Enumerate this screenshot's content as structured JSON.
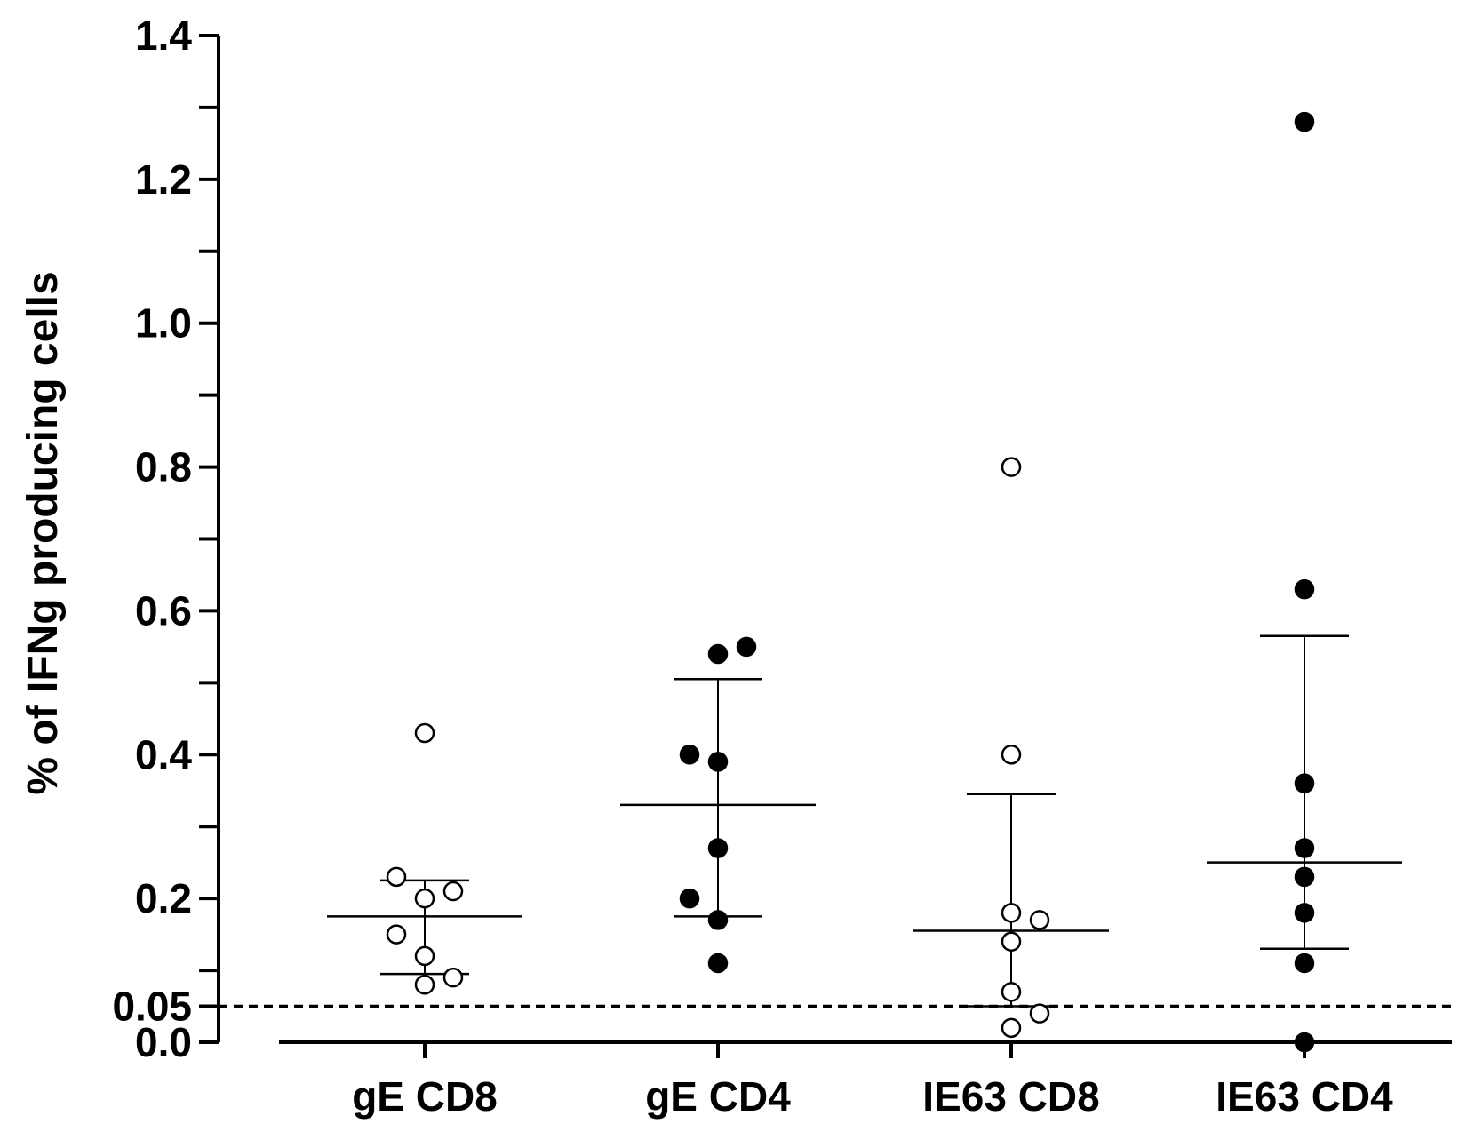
{
  "chart_data": {
    "type": "scatter",
    "title": "",
    "xlabel": "",
    "ylabel": "% of IFNg producing cells",
    "ylim": [
      0,
      1.4
    ],
    "yticks": [
      {
        "value": 0.0,
        "label": "0.0"
      },
      {
        "value": 0.05,
        "label": "0.05"
      },
      {
        "value": 0.2,
        "label": "0.2"
      },
      {
        "value": 0.4,
        "label": "0.4"
      },
      {
        "value": 0.6,
        "label": "0.6"
      },
      {
        "value": 0.8,
        "label": "0.8"
      },
      {
        "value": 1.0,
        "label": "1.0"
      },
      {
        "value": 1.2,
        "label": "1.2"
      },
      {
        "value": 1.4,
        "label": "1.4"
      }
    ],
    "minor_tick_step": 0.1,
    "categories": [
      "gE CD8",
      "gE CD4",
      "IE63 CD8",
      "IE63 CD4"
    ],
    "threshold": {
      "value": 0.05,
      "style": "dashed"
    },
    "zero_line": true,
    "series": [
      {
        "name": "gE CD8",
        "marker": "open-circle",
        "points": [
          {
            "offset": 0,
            "y": 0.43
          },
          {
            "offset": -1,
            "y": 0.23
          },
          {
            "offset": 0,
            "y": 0.2
          },
          {
            "offset": 1,
            "y": 0.21
          },
          {
            "offset": -1,
            "y": 0.15
          },
          {
            "offset": 0,
            "y": 0.12
          },
          {
            "offset": 0,
            "y": 0.08
          },
          {
            "offset": 1,
            "y": 0.09
          }
        ],
        "mean": 0.175,
        "sd_upper": 0.225,
        "sd_lower": 0.095
      },
      {
        "name": "gE CD4",
        "marker": "filled-circle",
        "points": [
          {
            "offset": 0,
            "y": 0.54
          },
          {
            "offset": 1,
            "y": 0.55
          },
          {
            "offset": -1,
            "y": 0.4
          },
          {
            "offset": 0,
            "y": 0.39
          },
          {
            "offset": 0,
            "y": 0.27
          },
          {
            "offset": -1,
            "y": 0.2
          },
          {
            "offset": 0,
            "y": 0.17
          },
          {
            "offset": 0,
            "y": 0.11
          }
        ],
        "mean": 0.33,
        "sd_upper": 0.505,
        "sd_lower": 0.175
      },
      {
        "name": "IE63 CD8",
        "marker": "open-circle",
        "points": [
          {
            "offset": 0,
            "y": 0.8
          },
          {
            "offset": 0,
            "y": 0.4
          },
          {
            "offset": 0,
            "y": 0.18
          },
          {
            "offset": 1,
            "y": 0.17
          },
          {
            "offset": 0,
            "y": 0.14
          },
          {
            "offset": 0,
            "y": 0.07
          },
          {
            "offset": 1,
            "y": 0.04
          },
          {
            "offset": 0,
            "y": 0.02
          }
        ],
        "mean": 0.155,
        "sd_upper": 0.345,
        "sd_lower": 0.05
      },
      {
        "name": "IE63 CD4",
        "marker": "filled-circle",
        "points": [
          {
            "offset": 0,
            "y": 1.28
          },
          {
            "offset": 0,
            "y": 0.63
          },
          {
            "offset": 0,
            "y": 0.36
          },
          {
            "offset": 0,
            "y": 0.27
          },
          {
            "offset": 0,
            "y": 0.23
          },
          {
            "offset": 0,
            "y": 0.18
          },
          {
            "offset": 0,
            "y": 0.11
          },
          {
            "offset": 0,
            "y": 0.0
          }
        ],
        "mean": 0.25,
        "sd_upper": 0.565,
        "sd_lower": 0.13
      }
    ]
  }
}
